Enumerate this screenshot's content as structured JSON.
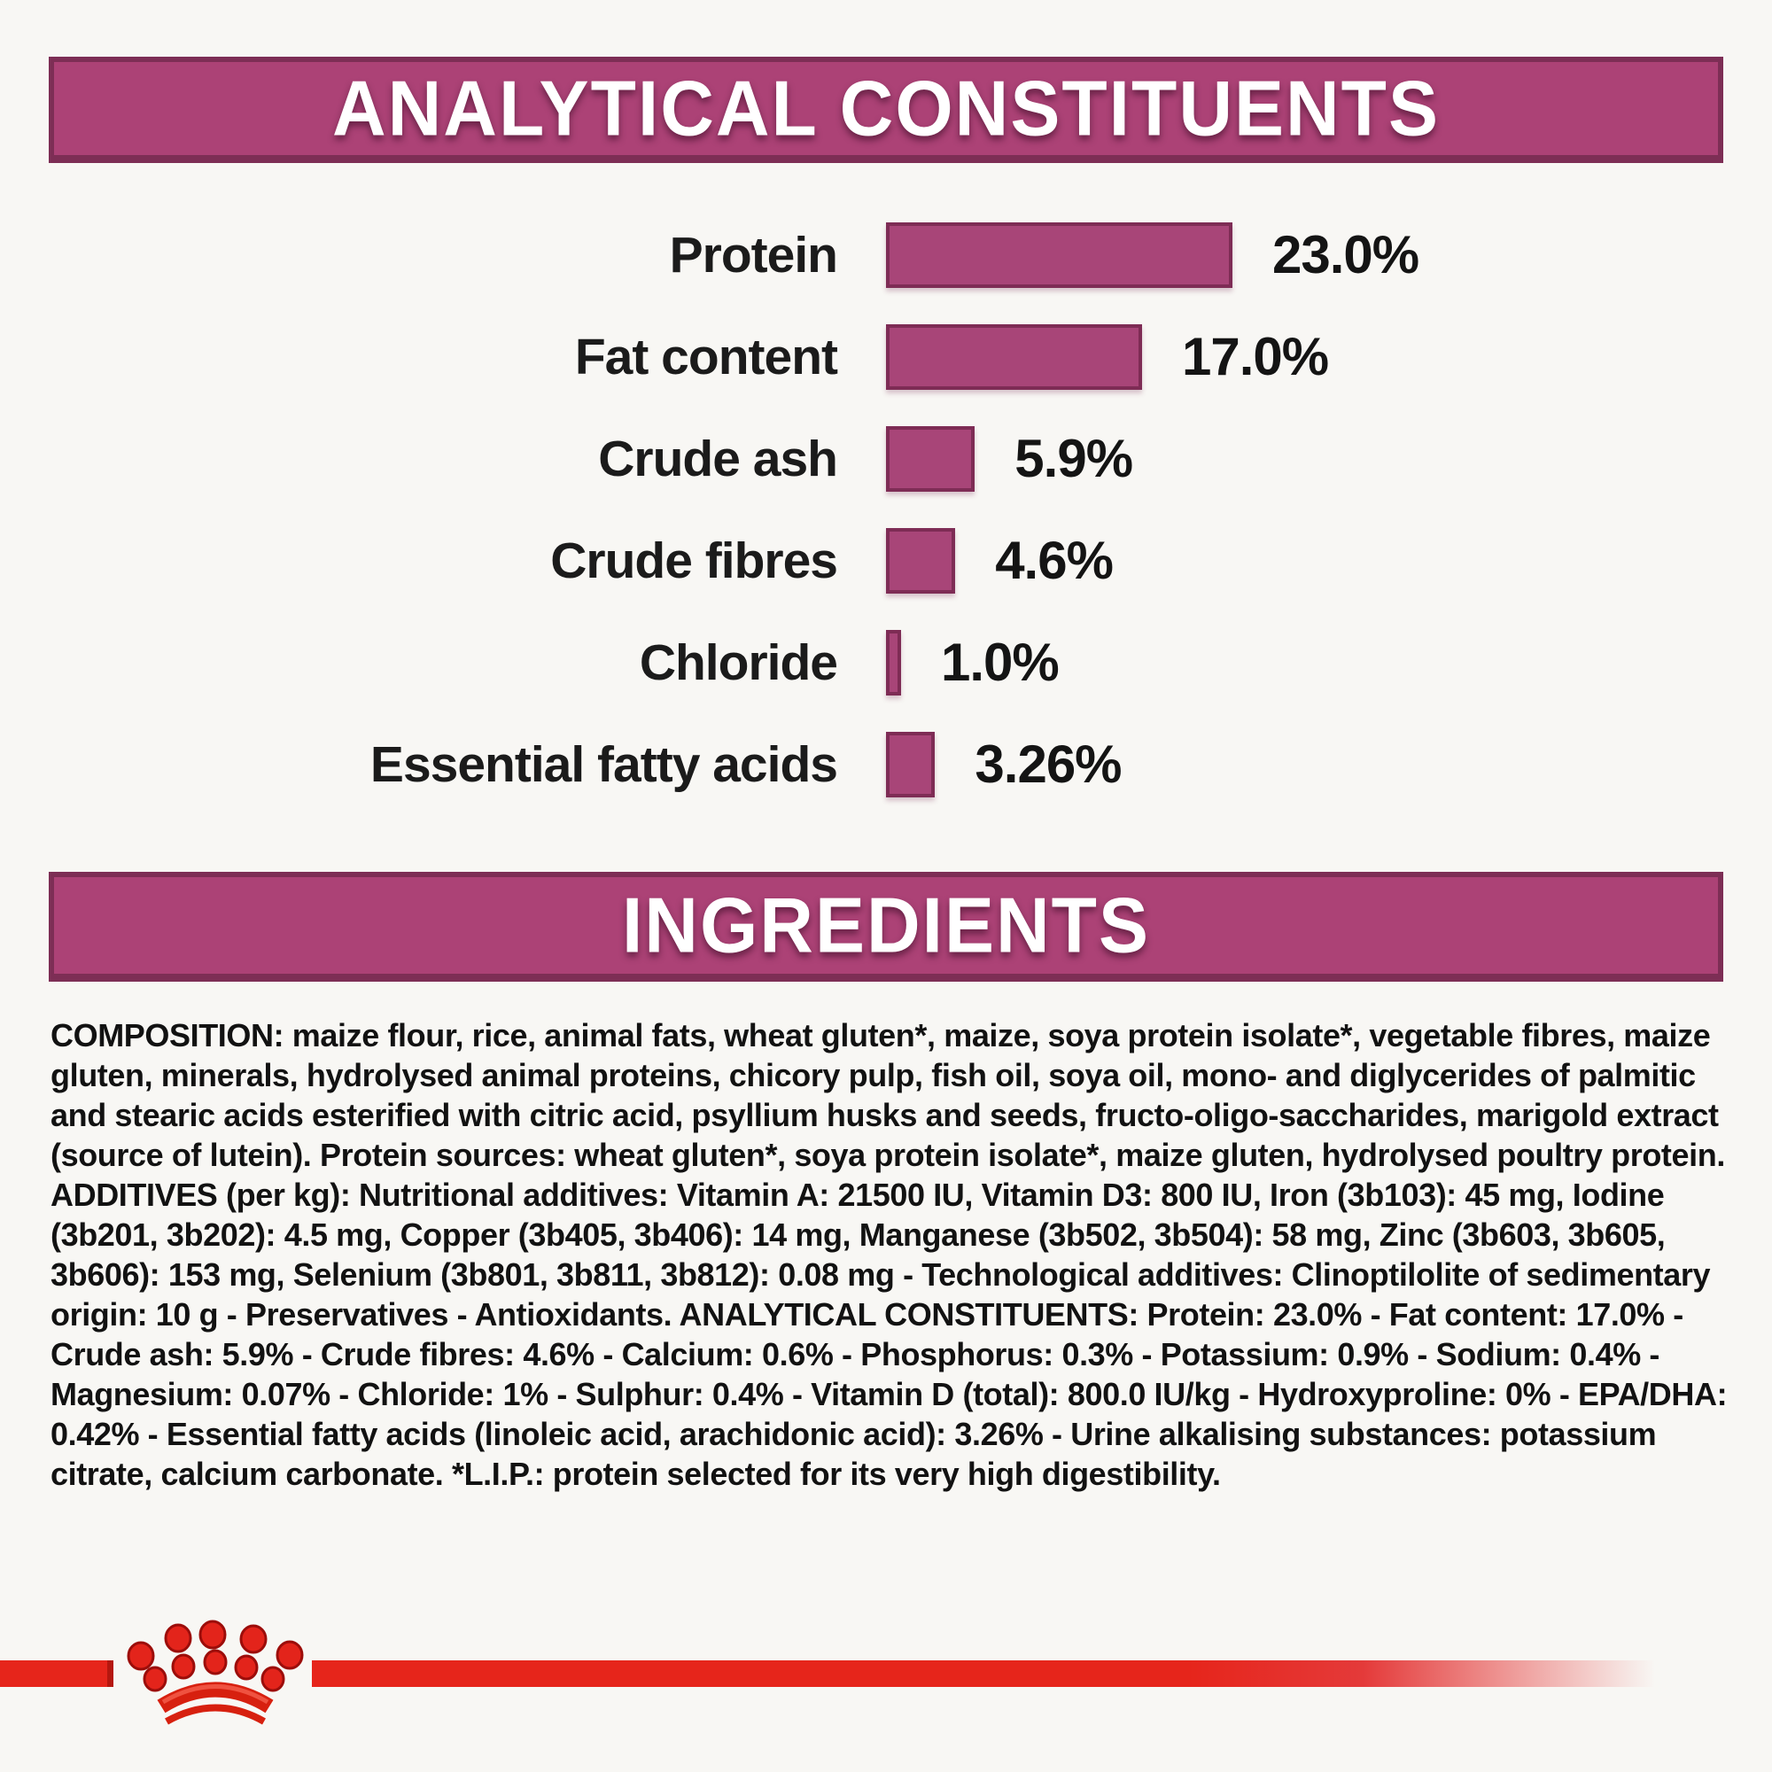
{
  "sections": {
    "analytical": {
      "title": "ANALYTICAL CONSTITUENTS"
    },
    "ingredients": {
      "title": "INGREDIENTS"
    }
  },
  "chart_data": {
    "type": "bar",
    "orientation": "horizontal",
    "title": "ANALYTICAL CONSTITUENTS",
    "categories": [
      "Protein",
      "Fat content",
      "Crude ash",
      "Crude fibres",
      "Chloride",
      "Essential fatty acids"
    ],
    "values": [
      23.0,
      17.0,
      5.9,
      4.6,
      1.0,
      3.26
    ],
    "value_labels": [
      "23.0%",
      "17.0%",
      "5.9%",
      "4.6%",
      "1.0%",
      "3.26%"
    ],
    "unit": "%",
    "xlim": [
      0,
      25
    ],
    "grid": false,
    "legend": false,
    "bar_color": "#a84578",
    "bar_border_color": "#7e2c55"
  },
  "ingredients": {
    "composition": "COMPOSITION: maize flour, rice, animal fats, wheat gluten*, maize, soya protein isolate*, vegetable fibres, maize gluten, minerals, hydrolysed animal proteins, chicory pulp, fish oil, soya oil, mono- and diglycerides of palmitic and stearic acids esterified with citric acid, psyllium husks and seeds, fructo-oligo-saccharides, marigold extract (source of lutein). Protein sources: wheat gluten*, soya protein isolate*, maize gluten, hydrolysed poultry protein. ADDITIVES (per kg): Nutritional additives: Vitamin A: 21500 IU, Vitamin D3: 800 IU, Iron (3b103): 45 mg, Iodine (3b201, 3b202): 4.5 mg, Copper (3b405, 3b406): 14 mg, Manganese (3b502, 3b504): 58 mg, Zinc (3b603, 3b605, 3b606): 153 mg, Selenium (3b801, 3b811, 3b812): 0.08 mg - Technological additives: Clinoptilolite of sedimentary origin: 10 g - Preservatives - Antioxidants. ANALYTICAL CONSTITUENTS: Protein: 23.0% - Fat content: 17.0% - Crude ash: 5.9% - Crude fibres: 4.6% - Calcium: 0.6% - Phosphorus: 0.3% - Potassium: 0.9% - Sodium: 0.4% - Magnesium: 0.07% - Chloride: 1% - Sulphur: 0.4% - Vitamin D (total): 800.0 IU/kg - Hydroxyproline: 0% - EPA/DHA: 0.42% - Essential fatty acids (linoleic acid, arachidonic acid): 3.26% - Urine alkalising substances: potassium citrate, calcium carbonate. *L.I.P.: protein selected for its very high digestibility."
  },
  "branding": {
    "logo": "royal-canin-crown",
    "red": "#e6251b"
  },
  "colors": {
    "banner": "#ac4276",
    "banner_border": "#7d2e55",
    "background": "#f8f7f4",
    "text": "#1b1b1b"
  }
}
